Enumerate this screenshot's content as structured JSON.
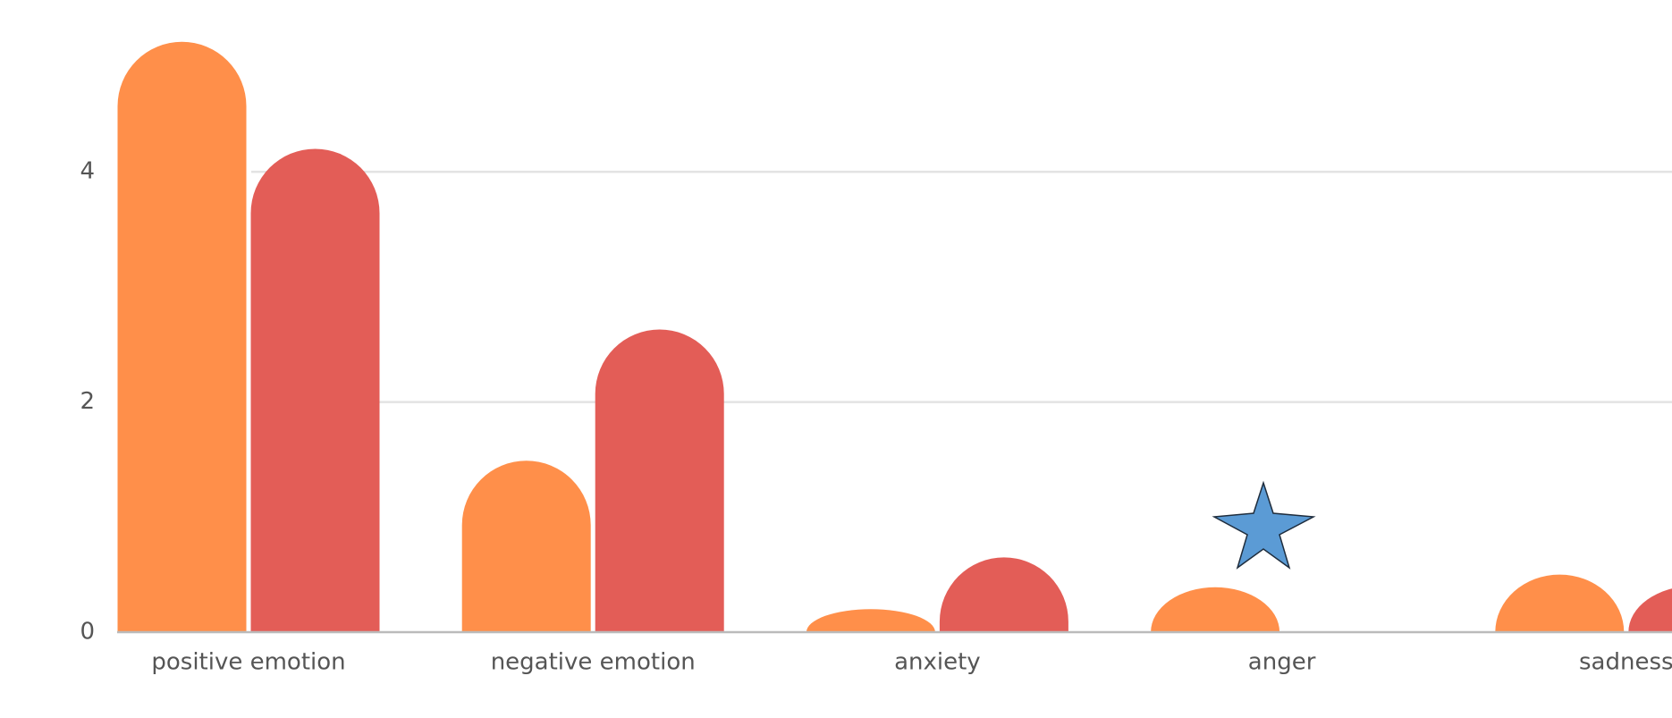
{
  "chart_data": {
    "type": "bar",
    "categories": [
      "positive emotion",
      "negative emotion",
      "anxiety",
      "anger",
      "sadness"
    ],
    "series": [
      {
        "color": "#ff8f4a",
        "values": [
          5.13,
          1.49,
          0.2,
          0.39,
          0.5
        ]
      },
      {
        "color": "#e35d57",
        "values": [
          4.2,
          2.63,
          0.65,
          null,
          0.4
        ]
      }
    ],
    "ylim": [
      0,
      5.4
    ],
    "yticks": [
      0,
      2,
      4
    ],
    "grid": true
  }
}
